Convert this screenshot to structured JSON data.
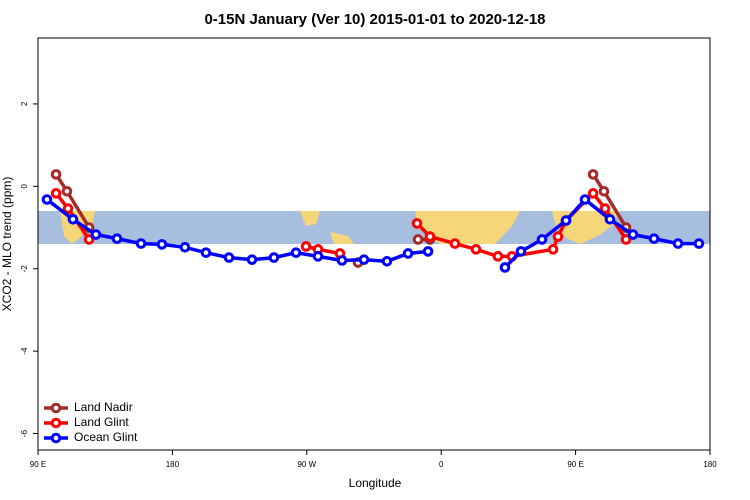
{
  "chart_data": {
    "type": "line",
    "title": "0-15N January (Ver 10)   2015-01-01 to 2020-12-18",
    "xlabel": "Longitude",
    "ylabel": "XCO2 - MLO trend (ppm)",
    "xlim": [
      90,
      540
    ],
    "ylim": [
      -6.4,
      3.6
    ],
    "xticks": [
      {
        "value": 90,
        "label": "90 E"
      },
      180,
      {
        "value": 270,
        "label": "90 W"
      },
      {
        "value": 360,
        "label": "0"
      },
      {
        "value": 450,
        "label": "90 E"
      },
      {
        "value": 540,
        "label": "180"
      }
    ],
    "yticks": [
      -6,
      -4,
      -2,
      0,
      2
    ],
    "legend": "bottom-left",
    "series": [
      {
        "name": "Land Nadir",
        "color": "#a52a2a",
        "x": [
          102.1,
          109.4,
          124.2,
          null,
          304.3,
          null,
          344.5,
          352.5,
          null,
          461.7,
          469.0,
          483.8
        ],
        "values": [
          0.29,
          -0.12,
          -1.0,
          null,
          -1.85,
          null,
          -1.29,
          -1.29,
          null,
          0.29,
          -0.12,
          -1.0
        ]
      },
      {
        "name": "Land Glint",
        "color": "#ff0000",
        "x": [
          102.1,
          110.1,
          124.2,
          null,
          269.5,
          277.5,
          292.2,
          null,
          343.8,
          352.5,
          369.2,
          383.3,
          398.0,
          407.4,
          434.9,
          438.2,
          443.6,
          461.7,
          469.7,
          483.8
        ],
        "values": [
          -0.17,
          -0.54,
          -1.29,
          null,
          -1.46,
          -1.53,
          -1.63,
          null,
          -0.9,
          -1.22,
          -1.39,
          -1.53,
          -1.7,
          -1.7,
          -1.53,
          -1.22,
          -0.83,
          -0.17,
          -0.54,
          -1.29
        ]
      },
      {
        "name": "Ocean Glint",
        "color": "#0000ff",
        "x": [
          96.0,
          113.4,
          128.8,
          142.9,
          159.0,
          173.0,
          188.4,
          202.5,
          217.9,
          233.3,
          248.0,
          262.8,
          277.5,
          293.6,
          308.3,
          323.7,
          337.8,
          351.2,
          null,
          402.7,
          413.4,
          427.5,
          443.6,
          456.3,
          473.0,
          488.4,
          502.5,
          518.6,
          532.6
        ],
        "values": [
          -0.32,
          -0.8,
          -1.17,
          -1.27,
          -1.39,
          -1.41,
          -1.48,
          -1.61,
          -1.73,
          -1.78,
          -1.73,
          -1.61,
          -1.7,
          -1.8,
          -1.78,
          -1.82,
          -1.63,
          -1.58,
          null,
          -1.97,
          -1.58,
          -1.29,
          -0.83,
          -0.32,
          -0.8,
          -1.17,
          -1.27,
          -1.39,
          -1.39
        ]
      }
    ]
  }
}
